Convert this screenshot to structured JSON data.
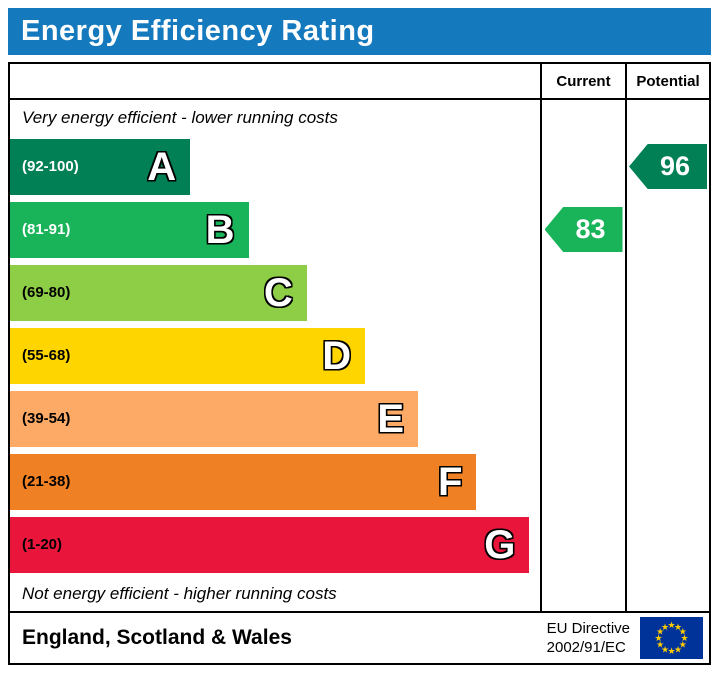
{
  "title": "Energy Efficiency Rating",
  "columns": {
    "current": "Current",
    "potential": "Potential"
  },
  "top_note": "Very energy efficient - lower running costs",
  "bottom_note": "Not energy efficient - higher running costs",
  "footer": {
    "region": "England, Scotland & Wales",
    "directive_line1": "EU Directive",
    "directive_line2": "2002/91/EC",
    "eu_flag": {
      "background": "#003399",
      "star_color": "#ffcc00"
    }
  },
  "theme": {
    "title_bar_color": "#1479bd",
    "title_text_color": "#ffffff",
    "border_color": "#000000"
  },
  "chart_data": {
    "type": "bar",
    "title": "Energy Efficiency Rating",
    "bands": [
      {
        "letter": "A",
        "range": "(92-100)",
        "min": 92,
        "max": 100,
        "color": "#008054",
        "range_text_color": "#ffffff",
        "width_pct": 34
      },
      {
        "letter": "B",
        "range": "(81-91)",
        "min": 81,
        "max": 91,
        "color": "#19b459",
        "range_text_color": "#ffffff",
        "width_pct": 45
      },
      {
        "letter": "C",
        "range": "(69-80)",
        "min": 69,
        "max": 80,
        "color": "#8dce46",
        "range_text_color": "#000000",
        "width_pct": 56
      },
      {
        "letter": "D",
        "range": "(55-68)",
        "min": 55,
        "max": 68,
        "color": "#ffd500",
        "range_text_color": "#000000",
        "width_pct": 67
      },
      {
        "letter": "E",
        "range": "(39-54)",
        "min": 39,
        "max": 54,
        "color": "#fcaa65",
        "range_text_color": "#000000",
        "width_pct": 77
      },
      {
        "letter": "F",
        "range": "(21-38)",
        "min": 21,
        "max": 38,
        "color": "#ef8023",
        "range_text_color": "#000000",
        "width_pct": 88
      },
      {
        "letter": "G",
        "range": "(1-20)",
        "min": 1,
        "max": 20,
        "color": "#e9153b",
        "range_text_color": "#000000",
        "width_pct": 98
      }
    ],
    "current": {
      "value": 83,
      "band": "B",
      "color": "#19b459"
    },
    "potential": {
      "value": 96,
      "band": "A",
      "color": "#008054"
    }
  }
}
